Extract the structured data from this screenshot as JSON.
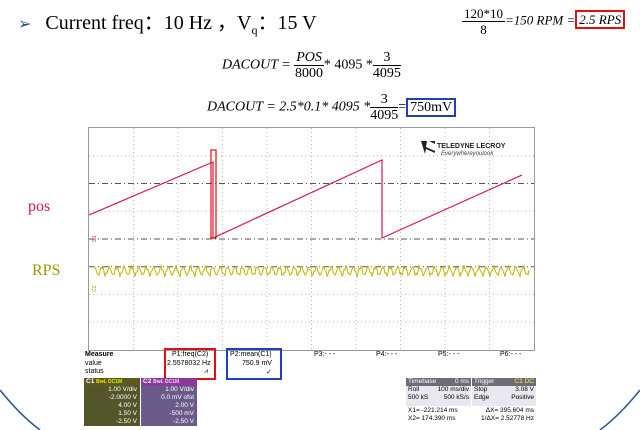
{
  "slide": {
    "bullet": "➢",
    "title_prefix": "Current freq：10 Hz ，V",
    "title_sub": "q",
    "title_suffix": "：15 V",
    "rpm_num": "120*10",
    "rpm_den": "8",
    "rpm_mid": "=150 RPM =",
    "rpm_result": "2.5 RPS",
    "eq1_lhs": "DACOUT =",
    "eq1_num": "POS",
    "eq1_den": "8000",
    "eq1_mid": "* 4095 *",
    "eq1_num2": "3",
    "eq1_den2": "4095",
    "eq2_lhs": "DACOUT = 2.5*0.1* 4095 *",
    "eq2_num": "3",
    "eq2_den": "4095",
    "eq2_eq": "=",
    "eq2_result": "750mV",
    "label_pos": "pos",
    "label_rps": "RPS"
  },
  "scope": {
    "brand": "TELEDYNE LECROY",
    "tagline": "Everywhereyoulook",
    "ch_marker": "C1",
    "ch_marker2": "C2"
  },
  "measure": {
    "header": "Measure",
    "row_value": "value",
    "row_status": "status",
    "p1_name": "P1:freq(C2)",
    "p1_value": "2.5578032 Hz",
    "p1_status": "⩘",
    "p2_name": "P2:mean(C1)",
    "p2_value": "750.9 mV",
    "p2_status": "✓",
    "p3": "P3:- - -",
    "p4": "P4:- - -",
    "p5": "P5:- - -",
    "p6": "P6:- - -"
  },
  "channels": {
    "c1": {
      "name": "C1",
      "tags": "BwL DC1M",
      "rows": [
        "1.00 V/div",
        "-2.0000 V",
        "4.00 V",
        "1.50 V",
        "-2.50 V"
      ]
    },
    "c2": {
      "name": "C2",
      "tags": "BwL DC1M",
      "rows": [
        "1.00 V/div",
        "0.0 mV ofst",
        "2.00 V",
        "-500 mV",
        "-2.50 V"
      ]
    }
  },
  "timebase": {
    "title": "Timebase",
    "tb_val": "0 ms",
    "r1a": "Roll",
    "r1b": "100 ms/div",
    "r2a": "500 kS",
    "r2b": "500 kS/s",
    "x1": "X1=  -221.214 ms",
    "dx": "ΔX=  395.604 ms",
    "x2": "X2=   174.390 ms",
    "idx": "1/ΔX=  2.52778 Hz"
  },
  "trigger": {
    "title": "Trigger",
    "tags": "C1 DC",
    "r1a": "Stop",
    "r1b": "3.08 V",
    "r2a": "Edge",
    "r2b": "Positive"
  },
  "colors": {
    "pos": "#d4145a",
    "rps": "#b8b800",
    "red_box": "#e01010",
    "blue_box": "#1e3fbf"
  }
}
